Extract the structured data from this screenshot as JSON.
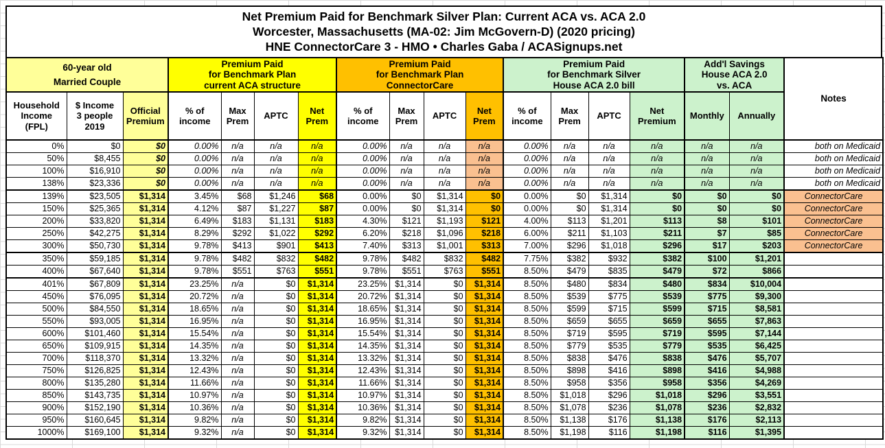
{
  "title": {
    "line1": "Net Premium Paid for Benchmark Silver Plan: Current ACA vs. ACA 2.0",
    "line2": "Worcester, Massachusetts (MA-02: Jim McGovern-D) (2020 pricing)",
    "line3": "HNE ConnectorCare 3 - HMO • Charles Gaba / ACASignups.net"
  },
  "colors": {
    "light_yellow": "#FFFF99",
    "yellow": "#FFFF00",
    "amber": "#FFC000",
    "light_green": "#CCF2CC",
    "peach": "#FAC090"
  },
  "table": {
    "groups": {
      "couple": "60-year old\nMarried Couple",
      "aca": "Premium Paid\nfor Benchmark Plan\ncurrent ACA structure",
      "cc": "Premium Paid\nfor Benchmark Plan\nConnectorCare",
      "aca2": "Premium Paid\nfor Benchmark Silver\nHouse ACA 2.0 bill",
      "savings": "Add'l Savings\nHouse ACA 2.0\nvs. ACA"
    },
    "columns": {
      "fpl": "Household\nIncome\n(FPL)",
      "income": "$ Income\n3 people\n2019",
      "official": "Official\nPremium",
      "pct": "% of\nincome",
      "max": "Max\nPrem",
      "aptc": "APTC",
      "net": "Net\nPrem",
      "net_premium": "Net\nPremium",
      "monthly": "Monthly",
      "annually": "Annually",
      "notes": "Notes"
    },
    "rows": [
      {
        "fpl": "0%",
        "income": "$0",
        "official": "$0",
        "aca": [
          "0.00%",
          "n/a",
          "n/a",
          "n/a"
        ],
        "cc": [
          "0.00%",
          "n/a",
          "n/a",
          "n/a"
        ],
        "aca2": [
          "0.00%",
          "n/a",
          "n/a",
          "n/a"
        ],
        "sav": [
          "n/a",
          "n/a"
        ],
        "note": "both on Medicaid",
        "kind": "medicaid"
      },
      {
        "fpl": "50%",
        "income": "$8,455",
        "official": "$0",
        "aca": [
          "0.00%",
          "n/a",
          "n/a",
          "n/a"
        ],
        "cc": [
          "0.00%",
          "n/a",
          "n/a",
          "n/a"
        ],
        "aca2": [
          "0.00%",
          "n/a",
          "n/a",
          "n/a"
        ],
        "sav": [
          "n/a",
          "n/a"
        ],
        "note": "both on Medicaid",
        "kind": "medicaid"
      },
      {
        "fpl": "100%",
        "income": "$16,910",
        "official": "$0",
        "aca": [
          "0.00%",
          "n/a",
          "n/a",
          "n/a"
        ],
        "cc": [
          "0.00%",
          "n/a",
          "n/a",
          "n/a"
        ],
        "aca2": [
          "0.00%",
          "n/a",
          "n/a",
          "n/a"
        ],
        "sav": [
          "n/a",
          "n/a"
        ],
        "note": "both on Medicaid",
        "kind": "medicaid"
      },
      {
        "fpl": "138%",
        "income": "$23,336",
        "official": "$0",
        "aca": [
          "0.00%",
          "n/a",
          "n/a",
          "n/a"
        ],
        "cc": [
          "0.00%",
          "n/a",
          "n/a",
          "n/a"
        ],
        "aca2": [
          "0.00%",
          "n/a",
          "n/a",
          "n/a"
        ],
        "sav": [
          "n/a",
          "n/a"
        ],
        "note": "both on Medicaid",
        "kind": "medicaid"
      },
      {
        "fpl": "139%",
        "income": "$23,505",
        "official": "$1,314",
        "aca": [
          "3.45%",
          "$68",
          "$1,246",
          "$68"
        ],
        "cc": [
          "0.00%",
          "$0",
          "$1,314",
          "$0"
        ],
        "aca2": [
          "0.00%",
          "$0",
          "$1,314",
          "$0"
        ],
        "sav": [
          "$0",
          "$0"
        ],
        "note": "ConnectorCare",
        "kind": "connectorcare"
      },
      {
        "fpl": "150%",
        "income": "$25,365",
        "official": "$1,314",
        "aca": [
          "4.12%",
          "$87",
          "$1,227",
          "$87"
        ],
        "cc": [
          "0.00%",
          "$0",
          "$1,314",
          "$0"
        ],
        "aca2": [
          "0.00%",
          "$0",
          "$1,314",
          "$0"
        ],
        "sav": [
          "$0",
          "$0"
        ],
        "note": "ConnectorCare",
        "kind": "connectorcare"
      },
      {
        "fpl": "200%",
        "income": "$33,820",
        "official": "$1,314",
        "aca": [
          "6.49%",
          "$183",
          "$1,131",
          "$183"
        ],
        "cc": [
          "4.30%",
          "$121",
          "$1,193",
          "$121"
        ],
        "aca2": [
          "4.00%",
          "$113",
          "$1,201",
          "$113"
        ],
        "sav": [
          "$8",
          "$101"
        ],
        "note": "ConnectorCare",
        "kind": "connectorcare"
      },
      {
        "fpl": "250%",
        "income": "$42,275",
        "official": "$1,314",
        "aca": [
          "8.29%",
          "$292",
          "$1,022",
          "$292"
        ],
        "cc": [
          "6.20%",
          "$218",
          "$1,096",
          "$218"
        ],
        "aca2": [
          "6.00%",
          "$211",
          "$1,103",
          "$211"
        ],
        "sav": [
          "$7",
          "$85"
        ],
        "note": "ConnectorCare",
        "kind": "connectorcare"
      },
      {
        "fpl": "300%",
        "income": "$50,730",
        "official": "$1,314",
        "aca": [
          "9.78%",
          "$413",
          "$901",
          "$413"
        ],
        "cc": [
          "7.40%",
          "$313",
          "$1,001",
          "$313"
        ],
        "aca2": [
          "7.00%",
          "$296",
          "$1,018",
          "$296"
        ],
        "sav": [
          "$17",
          "$203"
        ],
        "note": "ConnectorCare",
        "kind": "connectorcare"
      },
      {
        "fpl": "350%",
        "income": "$59,185",
        "official": "$1,314",
        "aca": [
          "9.78%",
          "$482",
          "$832",
          "$482"
        ],
        "cc": [
          "9.78%",
          "$482",
          "$832",
          "$482"
        ],
        "aca2": [
          "7.75%",
          "$382",
          "$932",
          "$382"
        ],
        "sav": [
          "$100",
          "$1,201"
        ],
        "note": "",
        "kind": ""
      },
      {
        "fpl": "400%",
        "income": "$67,640",
        "official": "$1,314",
        "aca": [
          "9.78%",
          "$551",
          "$763",
          "$551"
        ],
        "cc": [
          "9.78%",
          "$551",
          "$763",
          "$551"
        ],
        "aca2": [
          "8.50%",
          "$479",
          "$835",
          "$479"
        ],
        "sav": [
          "$72",
          "$866"
        ],
        "note": "",
        "kind": ""
      },
      {
        "fpl": "401%",
        "income": "$67,809",
        "official": "$1,314",
        "aca": [
          "23.25%",
          "n/a",
          "$0",
          "$1,314"
        ],
        "cc": [
          "23.25%",
          "$1,314",
          "$0",
          "$1,314"
        ],
        "aca2": [
          "8.50%",
          "$480",
          "$834",
          "$480"
        ],
        "sav": [
          "$834",
          "$10,004"
        ],
        "note": "",
        "kind": ""
      },
      {
        "fpl": "450%",
        "income": "$76,095",
        "official": "$1,314",
        "aca": [
          "20.72%",
          "n/a",
          "$0",
          "$1,314"
        ],
        "cc": [
          "20.72%",
          "$1,314",
          "$0",
          "$1,314"
        ],
        "aca2": [
          "8.50%",
          "$539",
          "$775",
          "$539"
        ],
        "sav": [
          "$775",
          "$9,300"
        ],
        "note": "",
        "kind": ""
      },
      {
        "fpl": "500%",
        "income": "$84,550",
        "official": "$1,314",
        "aca": [
          "18.65%",
          "n/a",
          "$0",
          "$1,314"
        ],
        "cc": [
          "18.65%",
          "$1,314",
          "$0",
          "$1,314"
        ],
        "aca2": [
          "8.50%",
          "$599",
          "$715",
          "$599"
        ],
        "sav": [
          "$715",
          "$8,581"
        ],
        "note": "",
        "kind": ""
      },
      {
        "fpl": "550%",
        "income": "$93,005",
        "official": "$1,314",
        "aca": [
          "16.95%",
          "n/a",
          "$0",
          "$1,314"
        ],
        "cc": [
          "16.95%",
          "$1,314",
          "$0",
          "$1,314"
        ],
        "aca2": [
          "8.50%",
          "$659",
          "$655",
          "$659"
        ],
        "sav": [
          "$655",
          "$7,863"
        ],
        "note": "",
        "kind": ""
      },
      {
        "fpl": "600%",
        "income": "$101,460",
        "official": "$1,314",
        "aca": [
          "15.54%",
          "n/a",
          "$0",
          "$1,314"
        ],
        "cc": [
          "15.54%",
          "$1,314",
          "$0",
          "$1,314"
        ],
        "aca2": [
          "8.50%",
          "$719",
          "$595",
          "$719"
        ],
        "sav": [
          "$595",
          "$7,144"
        ],
        "note": "",
        "kind": ""
      },
      {
        "fpl": "650%",
        "income": "$109,915",
        "official": "$1,314",
        "aca": [
          "14.35%",
          "n/a",
          "$0",
          "$1,314"
        ],
        "cc": [
          "14.35%",
          "$1,314",
          "$0",
          "$1,314"
        ],
        "aca2": [
          "8.50%",
          "$779",
          "$535",
          "$779"
        ],
        "sav": [
          "$535",
          "$6,425"
        ],
        "note": "",
        "kind": ""
      },
      {
        "fpl": "700%",
        "income": "$118,370",
        "official": "$1,314",
        "aca": [
          "13.32%",
          "n/a",
          "$0",
          "$1,314"
        ],
        "cc": [
          "13.32%",
          "$1,314",
          "$0",
          "$1,314"
        ],
        "aca2": [
          "8.50%",
          "$838",
          "$476",
          "$838"
        ],
        "sav": [
          "$476",
          "$5,707"
        ],
        "note": "",
        "kind": ""
      },
      {
        "fpl": "750%",
        "income": "$126,825",
        "official": "$1,314",
        "aca": [
          "12.43%",
          "n/a",
          "$0",
          "$1,314"
        ],
        "cc": [
          "12.43%",
          "$1,314",
          "$0",
          "$1,314"
        ],
        "aca2": [
          "8.50%",
          "$898",
          "$416",
          "$898"
        ],
        "sav": [
          "$416",
          "$4,988"
        ],
        "note": "",
        "kind": ""
      },
      {
        "fpl": "800%",
        "income": "$135,280",
        "official": "$1,314",
        "aca": [
          "11.66%",
          "n/a",
          "$0",
          "$1,314"
        ],
        "cc": [
          "11.66%",
          "$1,314",
          "$0",
          "$1,314"
        ],
        "aca2": [
          "8.50%",
          "$958",
          "$356",
          "$958"
        ],
        "sav": [
          "$356",
          "$4,269"
        ],
        "note": "",
        "kind": ""
      },
      {
        "fpl": "850%",
        "income": "$143,735",
        "official": "$1,314",
        "aca": [
          "10.97%",
          "n/a",
          "$0",
          "$1,314"
        ],
        "cc": [
          "10.97%",
          "$1,314",
          "$0",
          "$1,314"
        ],
        "aca2": [
          "8.50%",
          "$1,018",
          "$296",
          "$1,018"
        ],
        "sav": [
          "$296",
          "$3,551"
        ],
        "note": "",
        "kind": ""
      },
      {
        "fpl": "900%",
        "income": "$152,190",
        "official": "$1,314",
        "aca": [
          "10.36%",
          "n/a",
          "$0",
          "$1,314"
        ],
        "cc": [
          "10.36%",
          "$1,314",
          "$0",
          "$1,314"
        ],
        "aca2": [
          "8.50%",
          "$1,078",
          "$236",
          "$1,078"
        ],
        "sav": [
          "$236",
          "$2,832"
        ],
        "note": "",
        "kind": ""
      },
      {
        "fpl": "950%",
        "income": "$160,645",
        "official": "$1,314",
        "aca": [
          "9.82%",
          "n/a",
          "$0",
          "$1,314"
        ],
        "cc": [
          "9.82%",
          "$1,314",
          "$0",
          "$1,314"
        ],
        "aca2": [
          "8.50%",
          "$1,138",
          "$176",
          "$1,138"
        ],
        "sav": [
          "$176",
          "$2,113"
        ],
        "note": "",
        "kind": ""
      },
      {
        "fpl": "1000%",
        "income": "$169,100",
        "official": "$1,314",
        "aca": [
          "9.32%",
          "n/a",
          "$0",
          "$1,314"
        ],
        "cc": [
          "9.32%",
          "$1,314",
          "$0",
          "$1,314"
        ],
        "aca2": [
          "8.50%",
          "$1,198",
          "$116",
          "$1,198"
        ],
        "sav": [
          "$116",
          "$1,395"
        ],
        "note": "",
        "kind": ""
      }
    ]
  }
}
